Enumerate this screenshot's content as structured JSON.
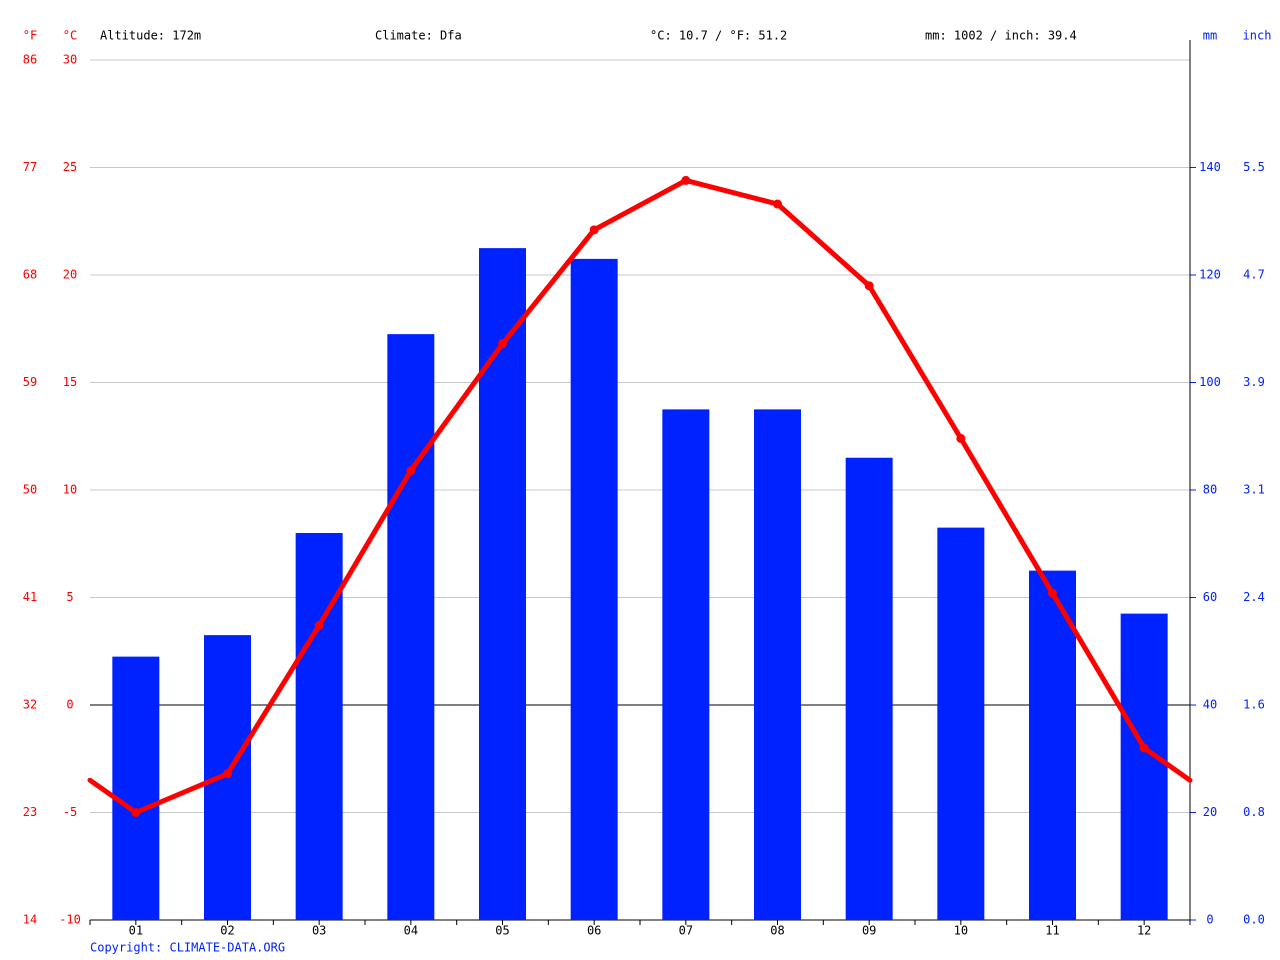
{
  "chart_data": {
    "type": "bar",
    "annotations": [
      "Altitude: 172m",
      "Climate: Dfa",
      "°C: 10.7 / °F: 51.2",
      "mm: 1002 / inch: 39.4"
    ],
    "source": "Copyright: CLIMATE-DATA.ORG",
    "y_label": "°C",
    "y2_label": "mm",
    "y3_label": "°F",
    "y4_label": "inch",
    "categories": [
      "01",
      "02",
      "03",
      "04",
      "05",
      "06",
      "07",
      "08",
      "09",
      "10",
      "11",
      "12"
    ],
    "series": [
      {
        "type": "bar",
        "axis": "y2",
        "color": "#0022ff",
        "values": [
          49,
          53,
          72,
          109,
          125,
          123,
          95,
          95,
          86,
          73,
          65,
          57
        ]
      },
      {
        "type": "line",
        "axis": "y",
        "color": "#ff0000",
        "values": [
          -5.0,
          -3.2,
          3.7,
          10.9,
          16.8,
          22.1,
          24.4,
          23.3,
          19.5,
          12.4,
          5.2,
          -2.0
        ]
      }
    ],
    "ylim": [
      -10,
      30
    ],
    "yticks": [
      -10,
      -5,
      0,
      5,
      10,
      15,
      20,
      25,
      30
    ],
    "y2lim": [
      0,
      160
    ],
    "y2ticks": [
      0,
      20,
      40,
      60,
      80,
      100,
      120,
      140
    ],
    "y3lim": [
      14,
      86
    ],
    "y3ticks": [
      14,
      23,
      32,
      41,
      50,
      59,
      68,
      77,
      86
    ],
    "y4lim": [
      0,
      6.299
    ],
    "y4ticks": [
      {
        "value": 0,
        "label": "0.0"
      },
      {
        "value": 0.787,
        "label": "0.8"
      },
      {
        "value": 1.575,
        "label": "1.6"
      },
      {
        "value": 2.362,
        "label": "2.4"
      },
      {
        "value": 3.15,
        "label": "3.1"
      },
      {
        "value": 3.937,
        "label": "3.9"
      },
      {
        "value": 4.724,
        "label": "4.7"
      },
      {
        "value": 5.512,
        "label": "5.5"
      }
    ],
    "grid": true,
    "y_color": "#ff0000",
    "y2_color": "#0022ff"
  }
}
